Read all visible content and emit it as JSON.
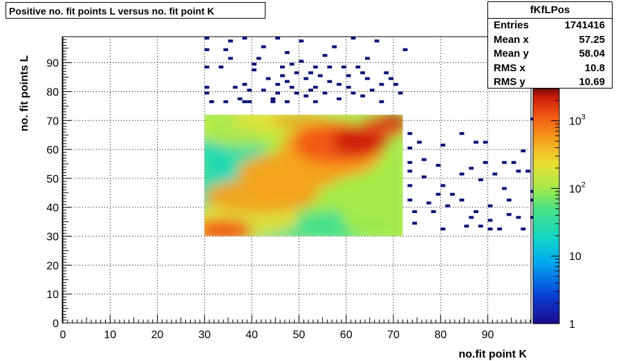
{
  "title": "Positive no. fit points L versus no. fit point K",
  "stats": {
    "name": "fKfLPos",
    "rows": [
      {
        "label": "Entries",
        "value": "1741416"
      },
      {
        "label": "Mean x",
        "value": "57.25"
      },
      {
        "label": "Mean y",
        "value": "58.04"
      },
      {
        "label": "RMS x",
        "value": "10.8"
      },
      {
        "label": "RMS y",
        "value": "10.69"
      }
    ]
  },
  "colors": {
    "palette": [
      "#1a0a8c",
      "#0a3fd6",
      "#00a8f0",
      "#11d6c8",
      "#46e08a",
      "#a6ea4a",
      "#eae032",
      "#f6a21c",
      "#f25a14",
      "#cf1e0c",
      "#7a0a0a"
    ],
    "sparse_bins": "#0a1478"
  },
  "chart_data": {
    "type": "heatmap",
    "xlabel": "no.fit point K",
    "ylabel": "no. fit points  L",
    "xlim": [
      0,
      99
    ],
    "ylim": [
      0,
      99
    ],
    "xticks": [
      0,
      10,
      20,
      30,
      40,
      50,
      60,
      70,
      80,
      90
    ],
    "yticks": [
      0,
      10,
      20,
      30,
      40,
      50,
      60,
      70,
      80,
      90
    ],
    "grid": true,
    "z_scale": "log",
    "zlim": [
      1,
      3000
    ],
    "colorbar_labels": [
      {
        "value": 1,
        "label": "1"
      },
      {
        "value": 10,
        "label": "10"
      },
      {
        "value": 100,
        "label": "10",
        "exp": "2"
      },
      {
        "value": 1000,
        "label": "10",
        "exp": "3"
      }
    ],
    "dense_region": {
      "x": [
        30,
        72
      ],
      "y": [
        30,
        72
      ]
    },
    "sparse_points": [
      [
        30,
        98
      ],
      [
        30,
        94
      ],
      [
        30,
        88
      ],
      [
        30,
        81
      ],
      [
        30,
        79
      ],
      [
        31,
        76
      ],
      [
        33,
        88
      ],
      [
        34,
        94
      ],
      [
        34,
        76
      ],
      [
        35,
        91
      ],
      [
        35,
        97
      ],
      [
        36,
        81
      ],
      [
        37,
        77
      ],
      [
        38,
        76
      ],
      [
        38,
        82
      ],
      [
        38,
        98
      ],
      [
        39,
        76
      ],
      [
        39,
        80
      ],
      [
        40,
        87
      ],
      [
        40,
        89
      ],
      [
        41,
        91
      ],
      [
        42,
        95
      ],
      [
        42,
        80
      ],
      [
        43,
        84
      ],
      [
        44,
        77
      ],
      [
        44,
        76
      ],
      [
        45,
        98
      ],
      [
        45,
        82
      ],
      [
        45,
        79
      ],
      [
        46,
        88
      ],
      [
        46,
        85
      ],
      [
        47,
        93
      ],
      [
        47,
        83
      ],
      [
        47,
        76
      ],
      [
        48,
        89
      ],
      [
        48,
        81
      ],
      [
        49,
        86
      ],
      [
        49,
        79
      ],
      [
        50,
        97
      ],
      [
        50,
        90
      ],
      [
        51,
        84
      ],
      [
        51,
        78
      ],
      [
        52,
        86
      ],
      [
        52,
        80
      ],
      [
        53,
        88
      ],
      [
        53,
        81
      ],
      [
        53,
        76
      ],
      [
        54,
        85
      ],
      [
        55,
        92
      ],
      [
        55,
        79
      ],
      [
        56,
        88
      ],
      [
        56,
        83
      ],
      [
        57,
        95
      ],
      [
        58,
        82
      ],
      [
        58,
        77
      ],
      [
        59,
        88
      ],
      [
        60,
        85
      ],
      [
        60,
        81
      ],
      [
        61,
        98
      ],
      [
        61,
        79
      ],
      [
        62,
        88
      ],
      [
        63,
        86
      ],
      [
        63,
        78
      ],
      [
        64,
        91
      ],
      [
        64,
        84
      ],
      [
        65,
        80
      ],
      [
        66,
        97
      ],
      [
        67,
        82
      ],
      [
        67,
        76
      ],
      [
        68,
        86
      ],
      [
        69,
        84
      ],
      [
        70,
        82
      ],
      [
        71,
        79
      ],
      [
        72,
        94
      ],
      [
        73,
        65
      ],
      [
        73,
        60
      ],
      [
        73,
        55
      ],
      [
        73,
        52
      ],
      [
        73,
        47
      ],
      [
        73,
        42
      ],
      [
        74,
        38
      ],
      [
        74,
        34
      ],
      [
        75,
        62
      ],
      [
        76,
        56
      ],
      [
        76,
        50
      ],
      [
        77,
        41
      ],
      [
        78,
        38
      ],
      [
        79,
        54
      ],
      [
        79,
        44
      ],
      [
        80,
        61
      ],
      [
        80,
        47
      ],
      [
        80,
        32
      ],
      [
        81,
        40
      ],
      [
        82,
        44
      ],
      [
        84,
        51
      ],
      [
        84,
        65
      ],
      [
        84,
        42
      ],
      [
        85,
        33
      ],
      [
        86,
        36
      ],
      [
        86,
        53
      ],
      [
        87,
        62
      ],
      [
        87,
        38
      ],
      [
        88,
        49
      ],
      [
        88,
        33
      ],
      [
        89,
        55
      ],
      [
        89,
        62
      ],
      [
        90,
        35
      ],
      [
        90,
        40
      ],
      [
        90,
        32
      ],
      [
        91,
        51
      ],
      [
        92,
        32
      ],
      [
        93,
        46
      ],
      [
        93,
        55
      ],
      [
        94,
        42
      ],
      [
        94,
        37
      ],
      [
        95,
        55
      ],
      [
        96,
        52
      ],
      [
        96,
        36
      ],
      [
        97,
        59
      ],
      [
        97,
        32
      ],
      [
        98,
        52
      ],
      [
        99,
        42
      ],
      [
        99,
        45
      ],
      [
        99,
        70
      ],
      [
        99,
        36
      ]
    ]
  }
}
